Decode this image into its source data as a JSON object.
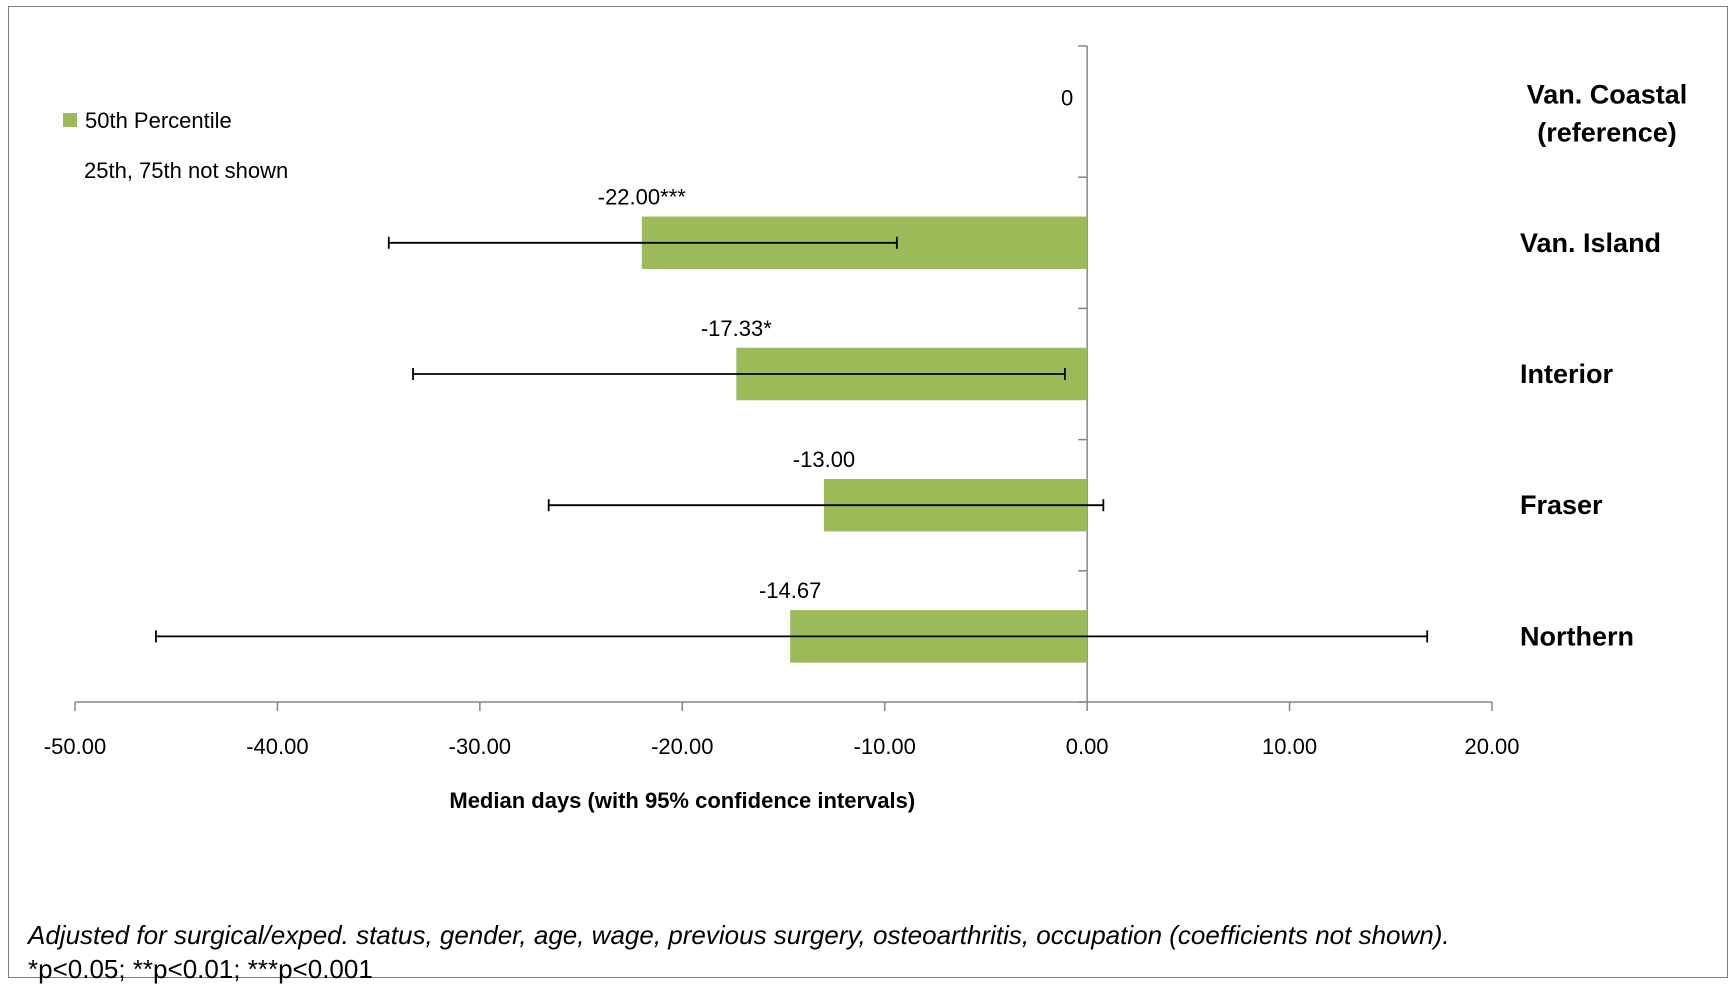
{
  "chart_data": {
    "type": "bar",
    "orientation": "horizontal",
    "categories": [
      "Van. Coastal\n(reference)",
      "Van. Island",
      "Interior",
      "Fraser",
      "Northern"
    ],
    "series": [
      {
        "name": "50th Percentile",
        "values": [
          0,
          -22.0,
          -17.33,
          -13.0,
          -14.67
        ],
        "ci_low": [
          null,
          -34.5,
          -33.3,
          -26.6,
          -46.0
        ],
        "ci_high": [
          null,
          -9.4,
          -1.1,
          0.8,
          16.8
        ],
        "labels": [
          "0",
          "-22.00***",
          "-17.33*",
          "-13.00",
          "-14.67"
        ]
      }
    ],
    "xlim": [
      -50,
      20
    ],
    "xticks": [
      -50,
      -40,
      -30,
      -20,
      -10,
      0,
      10,
      20
    ],
    "xtick_labels": [
      "-50.00",
      "-40.00",
      "-30.00",
      "-20.00",
      "-10.00",
      "0.00",
      "10.00",
      "20.00"
    ],
    "xlabel": "Median days (with 95% confidence intervals)",
    "ylabel": "",
    "title": "",
    "grid": false,
    "legend": {
      "position": "top-left",
      "entries": [
        "50th Percentile"
      ],
      "note": "25th, 75th not shown"
    },
    "colors": {
      "bar": "#9bbb59",
      "errorbar": "#000000",
      "axis": "#868686"
    }
  },
  "footnotes": {
    "adjusted": "Adjusted for surgical/exped. status, gender, age, wage, previous surgery, osteoarthritis, occupation (coefficients not shown).",
    "pvalues": "*p<0.05;  **p<0.01; ***p<0.001"
  }
}
